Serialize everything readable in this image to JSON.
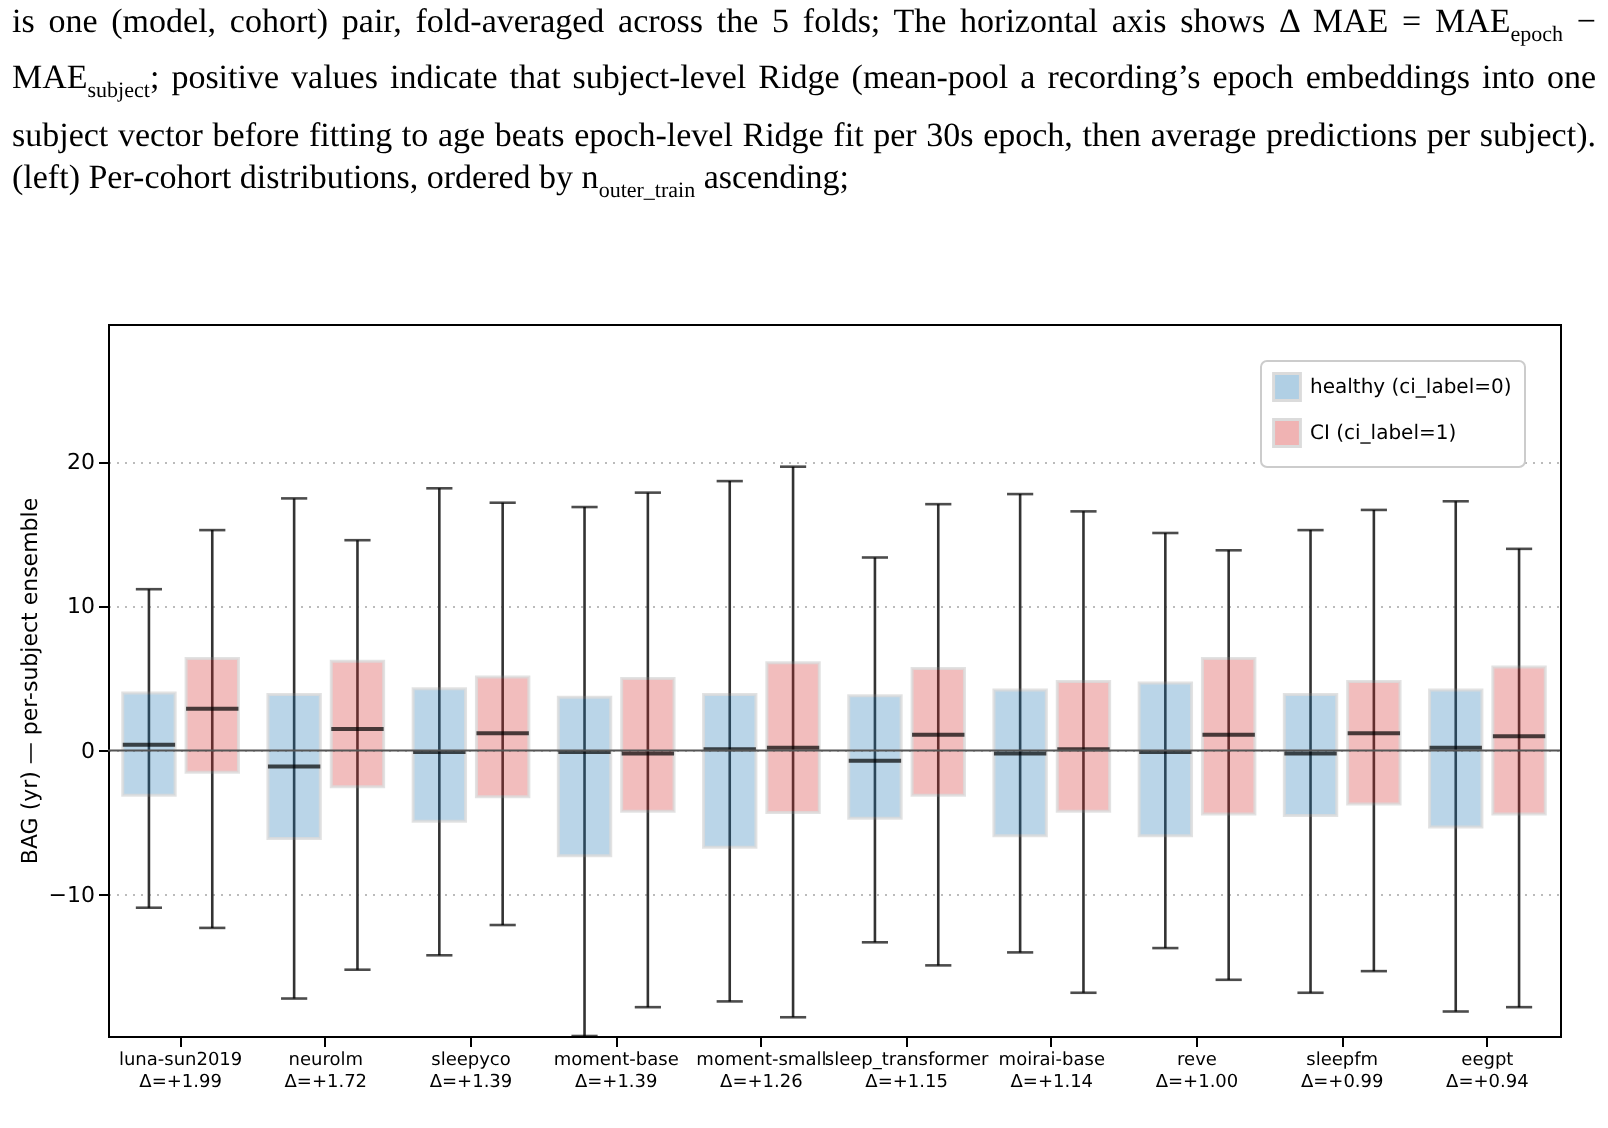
{
  "chart_data": {
    "type": "box",
    "annotations": [
      "is one (model, cohort) pair, fold-averaged across the 5 folds; The horizontal axis shows Δ MAE = MAE$_{epoch}$ − MAE$_{subject}$; positive values indicate that subject-level Ridge (mean-pool a recording’s epoch embeddings into one subject vector before fitting to age beats epoch-level Ridge fit per 30s epoch, then average predictions per subject). (left) Per-cohort distributions, ordered by n$_{outer_train}$ ascending;"
    ],
    "ylabel": "BAG (yr) — per-subject ensemble",
    "categories": [
      "luna-sun2019\nΔ=+1.99",
      "neurolm\nΔ=+1.72",
      "sleepyco\nΔ=+1.39",
      "moment-base\nΔ=+1.39",
      "moment-small\nΔ=+1.26",
      "sleep_transformer\nΔ=+1.15",
      "moirai-base\nΔ=+1.14",
      "reve\nΔ=+1.00",
      "sleepfm\nΔ=+0.99",
      "eegpt\nΔ=+0.94"
    ],
    "series": [
      {
        "name": "healthy (ci_label=0)",
        "color": "#1f77b4",
        "boxes": [
          {
            "low": -10.9,
            "q1": -3.1,
            "median": 0.4,
            "q3": 4.0,
            "high": 11.2
          },
          {
            "low": -17.2,
            "q1": -6.1,
            "median": -1.1,
            "q3": 3.9,
            "high": 17.5
          },
          {
            "low": -14.2,
            "q1": -4.9,
            "median": -0.1,
            "q3": 4.3,
            "high": 18.2
          },
          {
            "low": -19.8,
            "q1": -7.3,
            "median": -0.1,
            "q3": 3.7,
            "high": 16.9
          },
          {
            "low": -17.4,
            "q1": -6.7,
            "median": 0.1,
            "q3": 3.9,
            "high": 18.7
          },
          {
            "low": -13.3,
            "q1": -4.7,
            "median": -0.7,
            "q3": 3.8,
            "high": 13.4
          },
          {
            "low": -14.0,
            "q1": -5.9,
            "median": -0.2,
            "q3": 4.2,
            "high": 17.8
          },
          {
            "low": -13.7,
            "q1": -5.9,
            "median": -0.1,
            "q3": 4.7,
            "high": 15.1
          },
          {
            "low": -16.8,
            "q1": -4.5,
            "median": -0.2,
            "q3": 3.9,
            "high": 15.3
          },
          {
            "low": -18.1,
            "q1": -5.3,
            "median": 0.2,
            "q3": 4.2,
            "high": 17.3
          }
        ]
      },
      {
        "name": "CI (ci_label=1)",
        "color": "#d62728",
        "boxes": [
          {
            "low": -12.3,
            "q1": -1.5,
            "median": 2.9,
            "q3": 6.4,
            "high": 15.3
          },
          {
            "low": -15.2,
            "q1": -2.5,
            "median": 1.5,
            "q3": 6.2,
            "high": 14.6
          },
          {
            "low": -12.1,
            "q1": -3.2,
            "median": 1.2,
            "q3": 5.1,
            "high": 17.2
          },
          {
            "low": -17.8,
            "q1": -4.2,
            "median": -0.2,
            "q3": 5.0,
            "high": 17.9
          },
          {
            "low": -18.5,
            "q1": -4.3,
            "median": 0.2,
            "q3": 6.1,
            "high": 19.7
          },
          {
            "low": -14.9,
            "q1": -3.1,
            "median": 1.1,
            "q3": 5.7,
            "high": 17.1
          },
          {
            "low": -16.8,
            "q1": -4.2,
            "median": 0.1,
            "q3": 4.8,
            "high": 16.6
          },
          {
            "low": -15.9,
            "q1": -4.4,
            "median": 1.1,
            "q3": 6.4,
            "high": 13.9
          },
          {
            "low": -15.3,
            "q1": -3.7,
            "median": 1.2,
            "q3": 4.8,
            "high": 16.7
          },
          {
            "low": -17.8,
            "q1": -4.4,
            "median": 1.0,
            "q3": 5.8,
            "high": 14.0
          }
        ]
      }
    ],
    "ylim": [
      -19.8,
      29.6
    ],
    "yticks": [
      -10,
      0,
      10,
      20
    ],
    "grid": "y",
    "legend": "top right",
    "ref_lines": [
      {
        "axis": "y",
        "value": 0,
        "color": "#555555"
      }
    ]
  }
}
